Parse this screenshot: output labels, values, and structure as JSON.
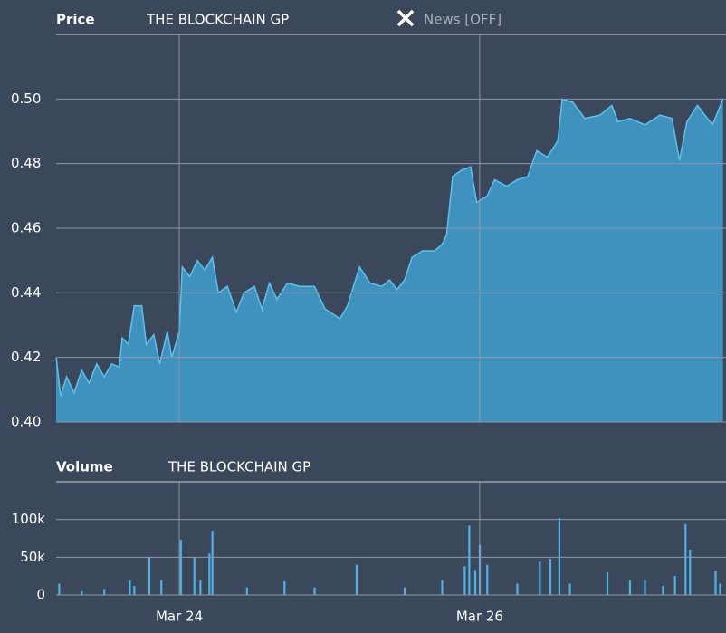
{
  "news_toggle": "News [OFF]",
  "chart_data": [
    {
      "type": "area",
      "title": "Price",
      "subtitle": "THE BLOCKCHAIN GP",
      "color": "#3f97c3",
      "line_color": "#5cc2f0",
      "grid": true,
      "xlim": [
        23.18,
        27.64
      ],
      "xticks": [
        24,
        26
      ],
      "ylim": [
        0.4,
        0.52
      ],
      "yticks": [
        {
          "value": 0.4,
          "label": "0.40"
        },
        {
          "value": 0.42,
          "label": "0.42"
        },
        {
          "value": 0.44,
          "label": "0.44"
        },
        {
          "value": 0.46,
          "label": "0.46"
        },
        {
          "value": 0.48,
          "label": "0.48"
        },
        {
          "value": 0.5,
          "label": "0.50"
        }
      ],
      "x": [
        23.18,
        23.21,
        23.25,
        23.3,
        23.35,
        23.4,
        23.45,
        23.5,
        23.55,
        23.6,
        23.62,
        23.66,
        23.7,
        23.75,
        23.78,
        23.83,
        23.87,
        23.92,
        23.95,
        24.0,
        24.02,
        24.07,
        24.12,
        24.17,
        24.22,
        24.26,
        24.32,
        24.38,
        24.43,
        24.5,
        24.55,
        24.6,
        24.65,
        24.72,
        24.8,
        24.9,
        24.97,
        25.07,
        25.12,
        25.2,
        25.27,
        25.35,
        25.4,
        25.45,
        25.5,
        25.55,
        25.62,
        25.7,
        25.75,
        25.78,
        25.82,
        25.88,
        25.94,
        25.98,
        26.05,
        26.1,
        26.18,
        26.25,
        26.32,
        26.38,
        26.45,
        26.52,
        26.55,
        26.62,
        26.7,
        26.8,
        26.88,
        26.92,
        27.0,
        27.1,
        27.2,
        27.28,
        27.33,
        27.38,
        27.45,
        27.55,
        27.62
      ],
      "values": [
        0.42,
        0.408,
        0.414,
        0.409,
        0.416,
        0.412,
        0.418,
        0.414,
        0.418,
        0.417,
        0.426,
        0.424,
        0.436,
        0.436,
        0.424,
        0.427,
        0.418,
        0.428,
        0.42,
        0.428,
        0.448,
        0.445,
        0.45,
        0.447,
        0.451,
        0.44,
        0.442,
        0.434,
        0.44,
        0.442,
        0.435,
        0.443,
        0.438,
        0.443,
        0.442,
        0.442,
        0.435,
        0.432,
        0.436,
        0.448,
        0.443,
        0.442,
        0.444,
        0.441,
        0.444,
        0.451,
        0.453,
        0.453,
        0.455,
        0.458,
        0.476,
        0.478,
        0.479,
        0.468,
        0.47,
        0.475,
        0.473,
        0.475,
        0.476,
        0.484,
        0.482,
        0.487,
        0.5,
        0.499,
        0.494,
        0.495,
        0.498,
        0.493,
        0.494,
        0.492,
        0.495,
        0.494,
        0.481,
        0.493,
        0.498,
        0.492,
        0.5
      ]
    },
    {
      "type": "bar",
      "title": "Volume",
      "subtitle": "THE BLOCKCHAIN GP",
      "color": "#4cb3e6",
      "grid": true,
      "xlim": [
        23.18,
        27.64
      ],
      "xticks": [
        {
          "value": 24,
          "label": "Mar 24"
        },
        {
          "value": 26,
          "label": "Mar 26"
        }
      ],
      "ylim": [
        0,
        150000
      ],
      "yticks": [
        0,
        {
          "value": 50000,
          "label": "50k"
        },
        {
          "value": 100000,
          "label": "100k"
        }
      ],
      "x": [
        23.2,
        23.35,
        23.5,
        23.67,
        23.7,
        23.8,
        23.88,
        24.01,
        24.1,
        24.14,
        24.2,
        24.22,
        24.45,
        24.7,
        24.9,
        25.18,
        25.5,
        25.75,
        25.9,
        25.93,
        25.97,
        26.0,
        26.05,
        26.25,
        26.4,
        26.47,
        26.53,
        26.6,
        26.85,
        27.0,
        27.1,
        27.22,
        27.3,
        27.37,
        27.4,
        27.57,
        27.6
      ],
      "values": [
        15000,
        5000,
        8000,
        20000,
        12000,
        50000,
        20000,
        73000,
        50000,
        20000,
        55000,
        85000,
        10000,
        18000,
        10000,
        40000,
        10000,
        20000,
        38000,
        92000,
        33000,
        66000,
        40000,
        15000,
        44000,
        48000,
        102000,
        15000,
        30000,
        20000,
        20000,
        12000,
        25000,
        94000,
        60000,
        32000,
        15000
      ]
    }
  ]
}
